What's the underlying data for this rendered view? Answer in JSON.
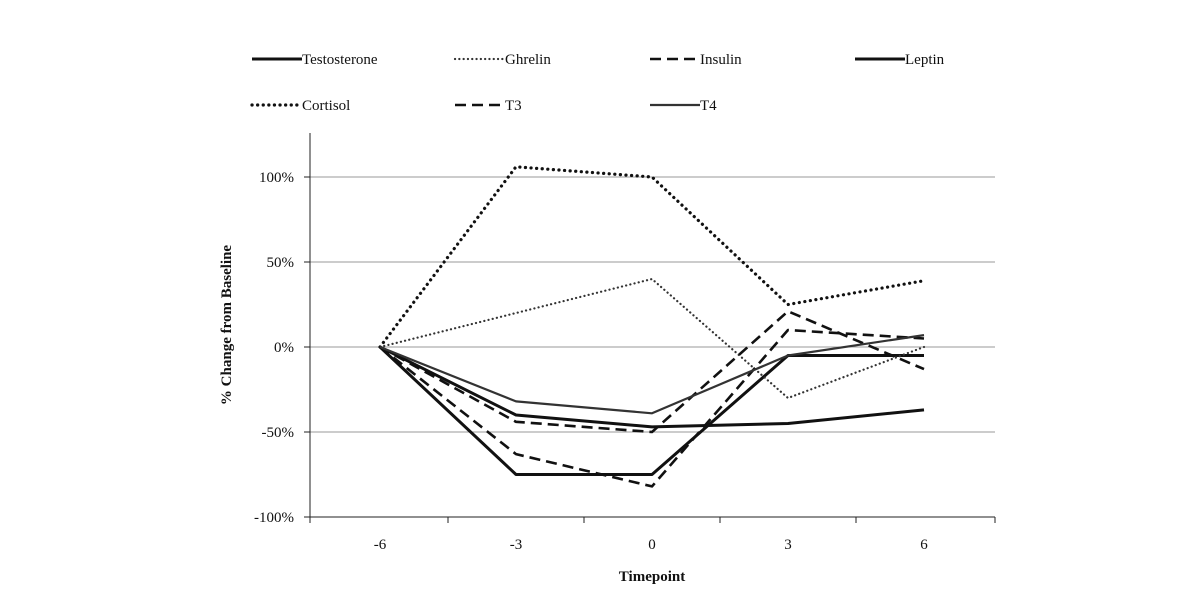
{
  "chart_data": {
    "type": "line",
    "xlabel": "Timepoint",
    "ylabel": "% Change from Baseline",
    "x": [
      -6,
      -3,
      0,
      3,
      6
    ],
    "x_tick_labels": [
      "-6",
      "-3",
      "0",
      "3",
      "6"
    ],
    "ylim": [
      -100,
      100
    ],
    "y_ticks": [
      -100,
      -50,
      0,
      50,
      100
    ],
    "y_tick_labels": [
      "-100%",
      "-50%",
      "0%",
      "50%",
      "100%"
    ],
    "grid": "horizontal",
    "legend_position": "top",
    "series": [
      {
        "name": "Testosterone",
        "style": "solid",
        "color": "#111111",
        "values": [
          0,
          -75,
          -75,
          -5,
          -5
        ]
      },
      {
        "name": "Ghrelin",
        "style": "dotted-fine",
        "color": "#333333",
        "values": [
          0,
          20,
          40,
          -30,
          0
        ]
      },
      {
        "name": "Insulin",
        "style": "dashed",
        "color": "#111111",
        "values": [
          0,
          -63,
          -82,
          10,
          5
        ]
      },
      {
        "name": "Leptin",
        "style": "solid",
        "color": "#111111",
        "values": [
          0,
          -40,
          -47,
          -45,
          -37
        ]
      },
      {
        "name": "Cortisol",
        "style": "dotted",
        "color": "#111111",
        "values": [
          0,
          106,
          100,
          25,
          39
        ]
      },
      {
        "name": "T3",
        "style": "dashed",
        "color": "#111111",
        "values": [
          0,
          -44,
          -50,
          21,
          -13
        ]
      },
      {
        "name": "T4",
        "style": "solid-thin",
        "color": "#333333",
        "values": [
          0,
          -32,
          -39,
          -5,
          7
        ]
      }
    ]
  }
}
